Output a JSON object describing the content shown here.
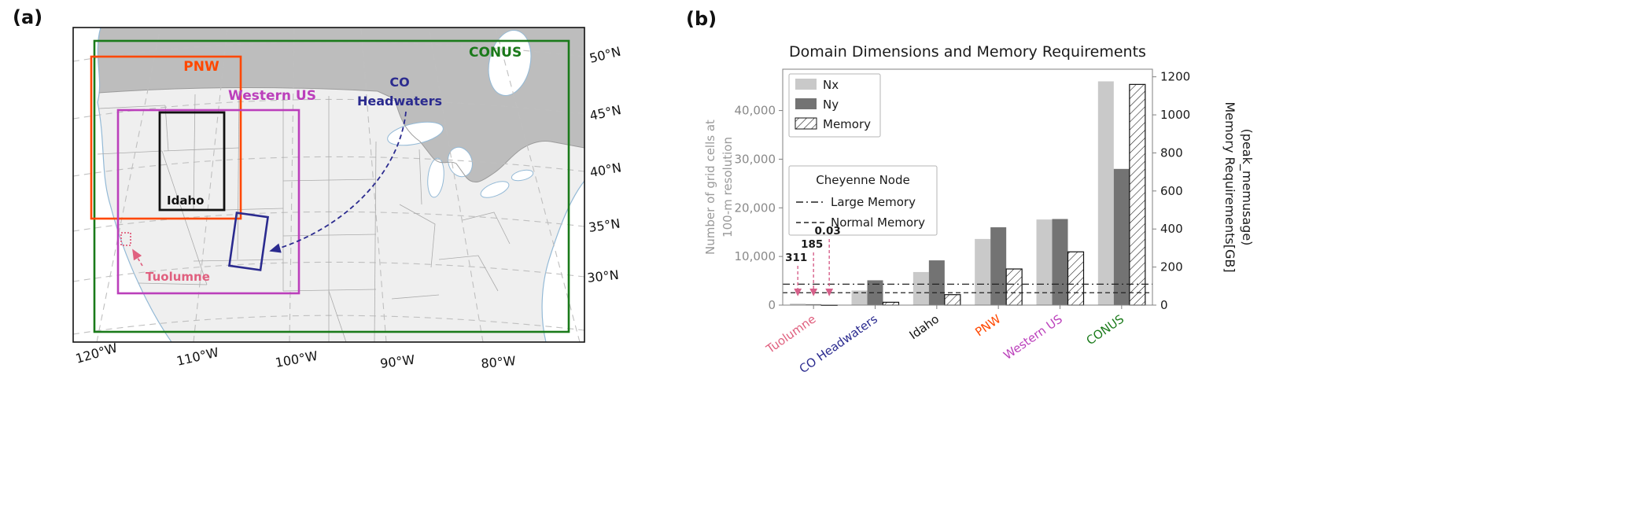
{
  "figure": {
    "panel_a_label": "(a)",
    "panel_b_label": "(b)"
  },
  "map": {
    "domains": {
      "conus": {
        "label": "CONUS",
        "color": "#1a7a1a"
      },
      "pnw": {
        "label": "PNW",
        "color": "#ff4800"
      },
      "western_us": {
        "label": "Western US",
        "color": "#bb3fbb"
      },
      "idaho": {
        "label": "Idaho",
        "color": "#111111"
      },
      "co_headwaters": {
        "label_line1": "CO",
        "label_line2": "Headwaters",
        "color": "#2b2b8f"
      },
      "tuolumne": {
        "label": "Tuolumne",
        "color": "#e0607f"
      }
    },
    "lat_labels": [
      "50°N",
      "45°N",
      "40°N",
      "35°N",
      "30°N"
    ],
    "lon_labels": [
      "120°W",
      "110°W",
      "100°W",
      "90°W",
      "80°W"
    ]
  },
  "chart_data": {
    "type": "bar",
    "title": "Domain Dimensions and Memory Requirements",
    "categories": [
      "Tuolumne",
      "CO Headwaters",
      "Idaho",
      "PNW",
      "Western US",
      "CONUS"
    ],
    "category_colors": [
      "#e0607f",
      "#2b2b8f",
      "#111111",
      "#ff4800",
      "#bb3fbb",
      "#1a7a1a"
    ],
    "series": [
      {
        "name": "Nx",
        "axis": "left",
        "color": "#c9c9c9",
        "values": [
          311,
          3000,
          6800,
          13600,
          17600,
          46000
        ]
      },
      {
        "name": "Ny",
        "axis": "left",
        "color": "#737373",
        "values": [
          185,
          5100,
          9200,
          16000,
          17700,
          28000
        ]
      },
      {
        "name": "Memory",
        "axis": "right",
        "hatch": true,
        "values": [
          0.03,
          15,
          55,
          190,
          280,
          1160
        ]
      }
    ],
    "left_axis": {
      "label_lines": [
        "Number of grid cells at",
        "100-m resolution"
      ],
      "ticks": [
        0,
        10000,
        20000,
        30000,
        40000
      ],
      "max": 48500
    },
    "right_axis": {
      "label_lines": [
        "Memory Requirements[GB]",
        "(peak_memusage)"
      ],
      "ticks": [
        0,
        200,
        400,
        600,
        800,
        1000,
        1200
      ],
      "max": 1240
    },
    "reference_lines": [
      {
        "label": "Large Memory",
        "style": "dashdot",
        "left_value": 4300
      },
      {
        "label": "Normal Memory",
        "style": "dashed",
        "left_value": 2550
      }
    ],
    "node_legend_title": "Cheyenne Node",
    "annotations": [
      {
        "text": "311",
        "series": 0
      },
      {
        "text": "185",
        "series": 1
      },
      {
        "text": "0.03",
        "series": 2
      }
    ],
    "annotation_color": "#d6608a",
    "grid": false,
    "legend_position": "upper-left"
  }
}
